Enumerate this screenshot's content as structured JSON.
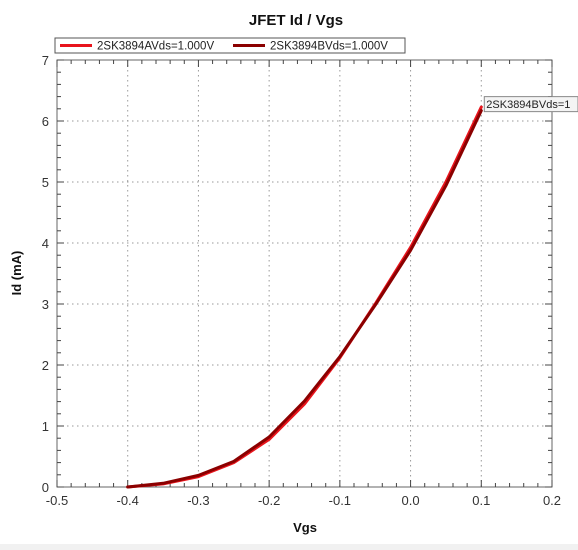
{
  "chart_data": {
    "type": "line",
    "title": "JFET Id / Vgs",
    "xlabel": "Vgs",
    "ylabel": "Id (mA)",
    "xlim": [
      -0.5,
      0.2
    ],
    "ylim": [
      0,
      7
    ],
    "xticks": [
      -0.5,
      -0.4,
      -0.3,
      -0.2,
      -0.1,
      0.0,
      0.1,
      0.2
    ],
    "xtick_labels": [
      "-0.5",
      "-0.4",
      "-0.3",
      "-0.2",
      "-0.1",
      "0.0",
      "0.1",
      "0.2"
    ],
    "yticks": [
      0,
      1,
      2,
      3,
      4,
      5,
      6,
      7
    ],
    "ytick_labels": [
      "0",
      "1",
      "2",
      "3",
      "4",
      "5",
      "6",
      "7"
    ],
    "grid": true,
    "legend_position": "top-left",
    "series": [
      {
        "name": "2SK3894AVds=1.000V",
        "color": "#e8141c",
        "x": [
          -0.4,
          -0.35,
          -0.3,
          -0.25,
          -0.2,
          -0.15,
          -0.1,
          -0.05,
          0.0,
          0.05,
          0.1
        ],
        "y": [
          0.0,
          0.05,
          0.17,
          0.4,
          0.78,
          1.36,
          2.12,
          3.0,
          3.93,
          5.0,
          6.23
        ]
      },
      {
        "name": "2SK3894BVds=1.000V",
        "color": "#8b0000",
        "x": [
          -0.4,
          -0.35,
          -0.3,
          -0.25,
          -0.2,
          -0.15,
          -0.1,
          -0.05,
          0.0,
          0.05,
          0.1
        ],
        "y": [
          0.0,
          0.06,
          0.19,
          0.42,
          0.82,
          1.41,
          2.14,
          2.98,
          3.88,
          4.94,
          6.17
        ]
      }
    ],
    "annotation": {
      "text": "2SK3894BVds=1",
      "x": 0.1,
      "y": 6.17
    }
  }
}
